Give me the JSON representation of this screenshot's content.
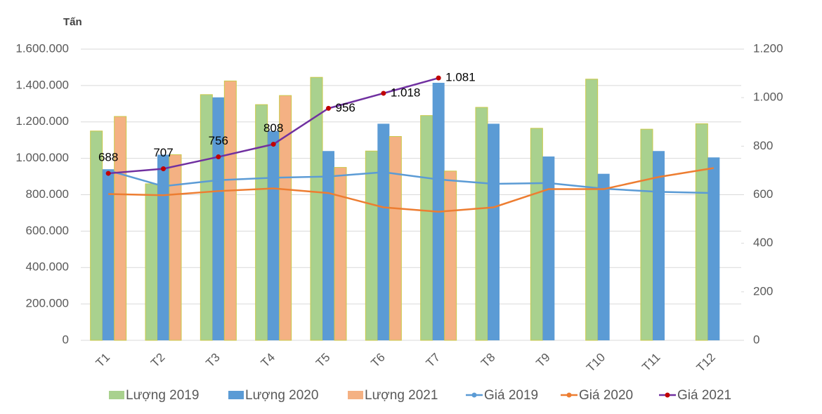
{
  "chart_data": {
    "type": "combo",
    "y_unit_label": "Tấn",
    "categories": [
      "T1",
      "T2",
      "T3",
      "T4",
      "T5",
      "T6",
      "T7",
      "T8",
      "T9",
      "T10",
      "T11",
      "T12"
    ],
    "ylim": [
      0,
      1600000
    ],
    "yticks": [
      0,
      {
        "value": 200000,
        "label": "200.000"
      },
      {
        "value": 400000,
        "label": "400.000"
      },
      {
        "value": 600000,
        "label": "600.000"
      },
      {
        "value": 800000,
        "label": "800.000"
      },
      {
        "value": 1000000,
        "label": "1.000.000"
      },
      {
        "value": 1200000,
        "label": "1.200.000"
      },
      {
        "value": 1400000,
        "label": "1.400.000"
      },
      {
        "value": 1600000,
        "label": "1.600.000"
      }
    ],
    "y2lim": [
      0,
      1200
    ],
    "y2ticks": [
      0,
      200,
      400,
      600,
      800,
      {
        "value": 1000,
        "label": "1.000"
      },
      {
        "value": 1200,
        "label": "1.200"
      }
    ],
    "grid": true,
    "legend": "bottom",
    "series": [
      {
        "name": "Lượng 2019",
        "type": "bar",
        "color": "#a9d18e",
        "values": [
          1150000,
          860000,
          1350000,
          1295000,
          1445000,
          1040000,
          1235000,
          1280000,
          1165000,
          1435000,
          1160000,
          1190000
        ]
      },
      {
        "name": "Lượng 2020",
        "type": "bar",
        "color": "#5b9bd5",
        "values": [
          940000,
          1020000,
          1335000,
          1150000,
          1040000,
          1190000,
          1415000,
          1190000,
          1010000,
          915000,
          1040000,
          1005000
        ]
      },
      {
        "name": "Lượng 2021",
        "type": "bar",
        "color": "#f4b183",
        "values": [
          1230000,
          1020000,
          1425000,
          1345000,
          950000,
          1120000,
          930000,
          null,
          null,
          null,
          null,
          null
        ]
      },
      {
        "name": "Giá 2019",
        "type": "line",
        "axis": "y2",
        "color": "#5b9bd5",
        "values": [
          700,
          635,
          660,
          670,
          675,
          693,
          663,
          645,
          648,
          625,
          612,
          607
        ]
      },
      {
        "name": "Giá 2020",
        "type": "line",
        "axis": "y2",
        "color": "#ed7d31",
        "values": [
          603,
          598,
          615,
          626,
          607,
          548,
          530,
          548,
          623,
          623,
          673,
          710
        ]
      },
      {
        "name": "Giá 2021",
        "type": "line",
        "axis": "y2",
        "color": "#7030a0",
        "marker_color": "#c00000",
        "markers": true,
        "values": [
          688,
          707,
          756,
          808,
          956,
          1018,
          1081,
          null,
          null,
          null,
          null,
          null
        ],
        "value_labels": [
          "688",
          "707",
          "756",
          "808",
          "956",
          "1.018",
          "1.081",
          null,
          null,
          null,
          null,
          null
        ]
      }
    ]
  }
}
